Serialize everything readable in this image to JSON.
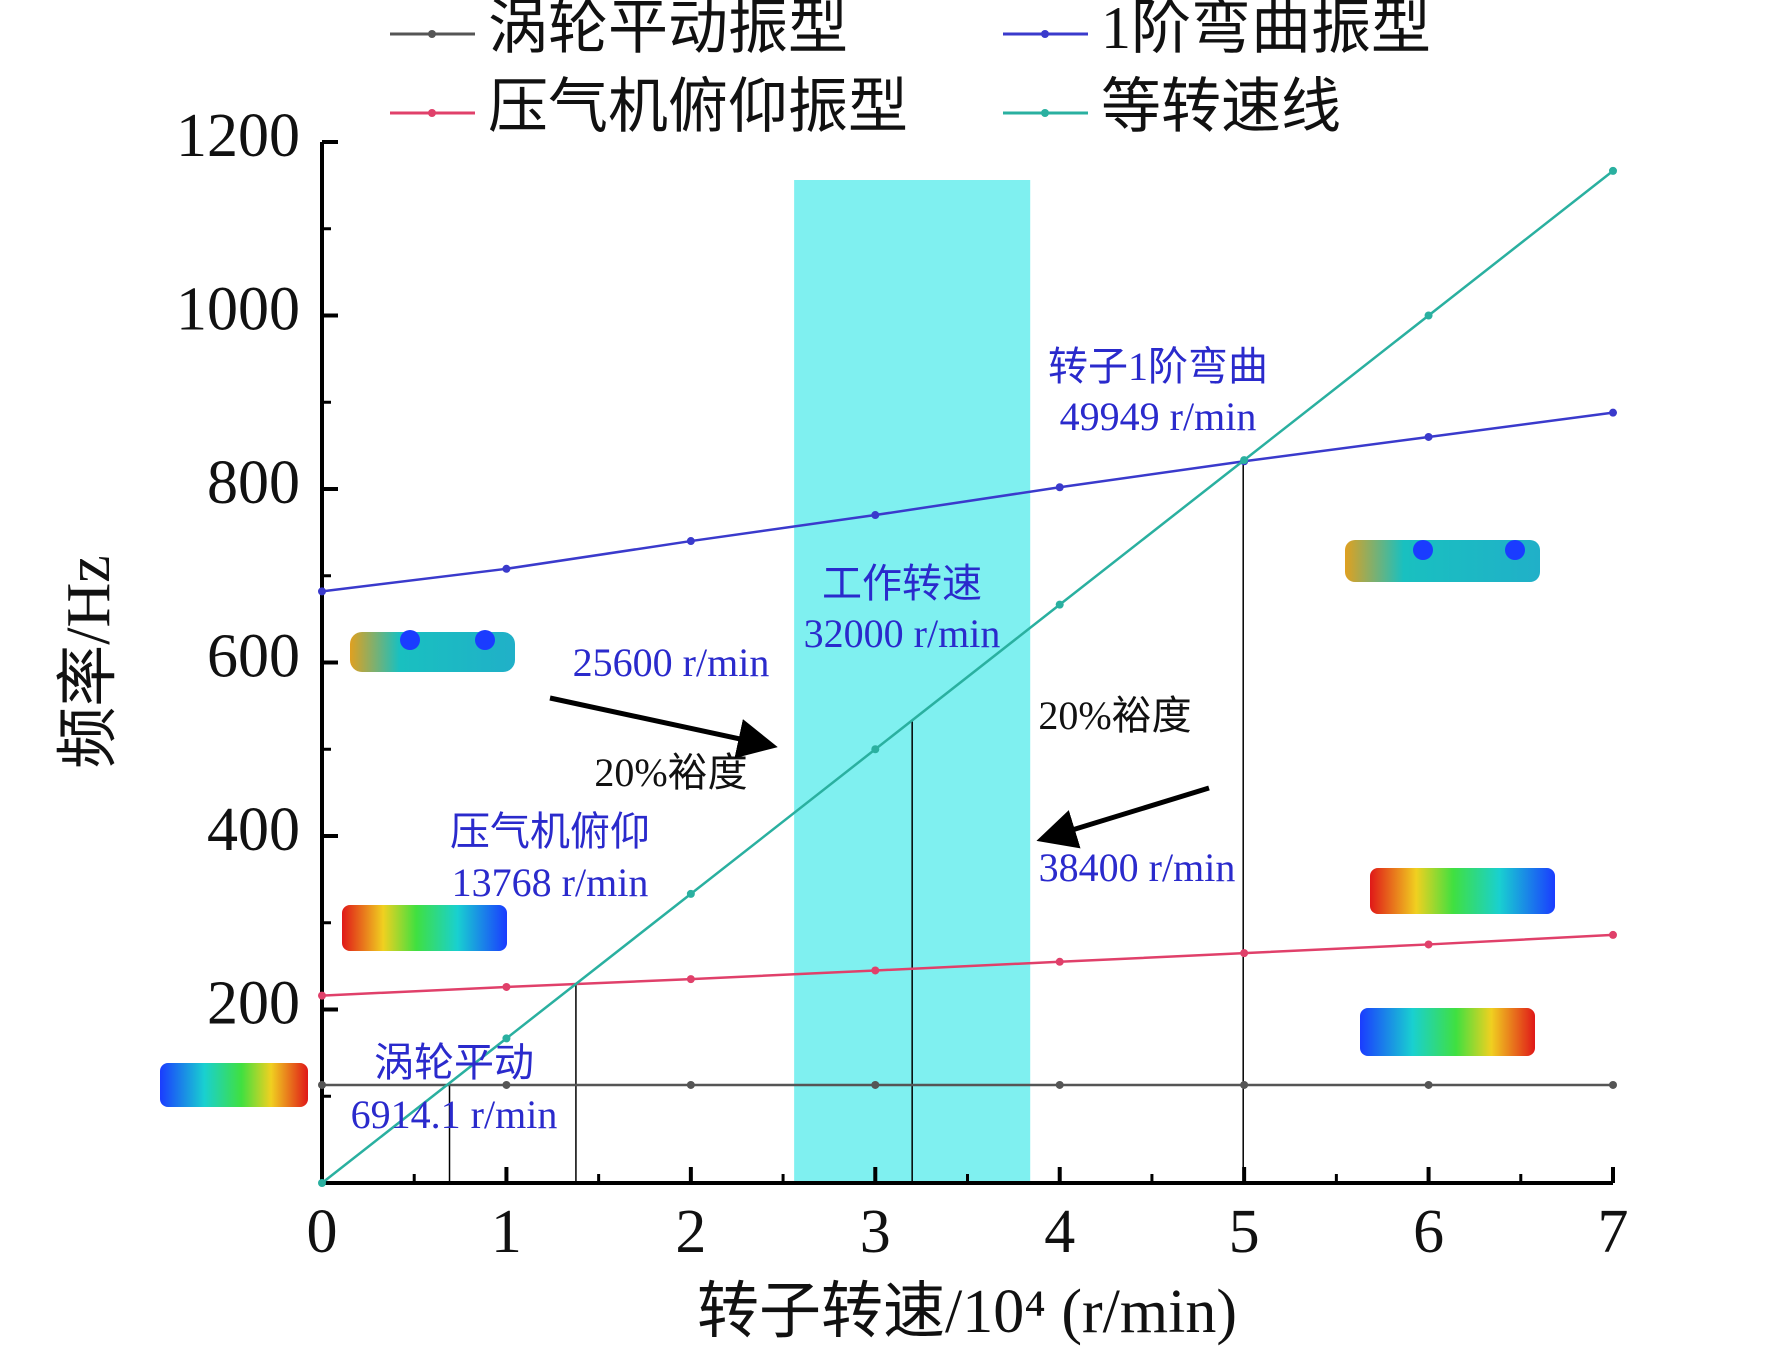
{
  "chart_data": {
    "type": "line",
    "xlabel": "转子转速/10⁴ (r/min)",
    "ylabel": "频率/Hz",
    "x": [
      0,
      1,
      2,
      3,
      4,
      5,
      6,
      7
    ],
    "series": [
      {
        "name": "涡轮平动振型",
        "color": "#555555",
        "values": [
          113,
          113,
          113,
          113,
          113,
          113,
          113,
          113
        ]
      },
      {
        "name": "1阶弯曲振型",
        "color": "#3a3acc",
        "values": [
          682,
          708,
          740,
          770,
          802,
          832,
          860,
          888
        ]
      },
      {
        "name": "压气机俯仰振型",
        "color": "#e0406a",
        "values": [
          216,
          226,
          235,
          245,
          255,
          265,
          275,
          286
        ]
      },
      {
        "name": "等转速线",
        "color": "#2ab0a0",
        "values": [
          0,
          166.7,
          333.3,
          500,
          666.7,
          833.3,
          1000,
          1166.7
        ]
      }
    ],
    "shaded_range": [
      2.56,
      3.84
    ],
    "shaded_color": "#7ff0f0",
    "critical_points": [
      {
        "x": 0.69141,
        "y": 115.2
      },
      {
        "x": 1.3768,
        "y": 229.5
      },
      {
        "x": 3.2,
        "y": 533.3
      },
      {
        "x": 4.9949,
        "y": 832.5
      }
    ],
    "annotations": [
      {
        "text": "转子1阶弯曲",
        "color": "#2a2acc"
      },
      {
        "text": "49949 r/min",
        "color": "#2a2acc"
      },
      {
        "text": "工作转速",
        "color": "#2a2acc"
      },
      {
        "text": "32000 r/min",
        "color": "#2a2acc"
      },
      {
        "text": "25600 r/min",
        "color": "#2a2acc"
      },
      {
        "text": "20%裕度",
        "color": "#111111"
      },
      {
        "text": "20%裕度",
        "color": "#111111"
      },
      {
        "text": "38400 r/min",
        "color": "#2a2acc"
      },
      {
        "text": "压气机俯仰",
        "color": "#2a2acc"
      },
      {
        "text": "13768 r/min",
        "color": "#2a2acc"
      },
      {
        "text": "涡轮平动",
        "color": "#2a2acc"
      },
      {
        "text": "6914.1 r/min",
        "color": "#2a2acc"
      }
    ],
    "xlim": [
      0,
      7
    ],
    "ylim": [
      0,
      1200
    ],
    "xticks": [
      0,
      1,
      2,
      3,
      4,
      5,
      6,
      7
    ],
    "yticks": [
      200,
      400,
      600,
      800,
      1000,
      1200
    ]
  }
}
